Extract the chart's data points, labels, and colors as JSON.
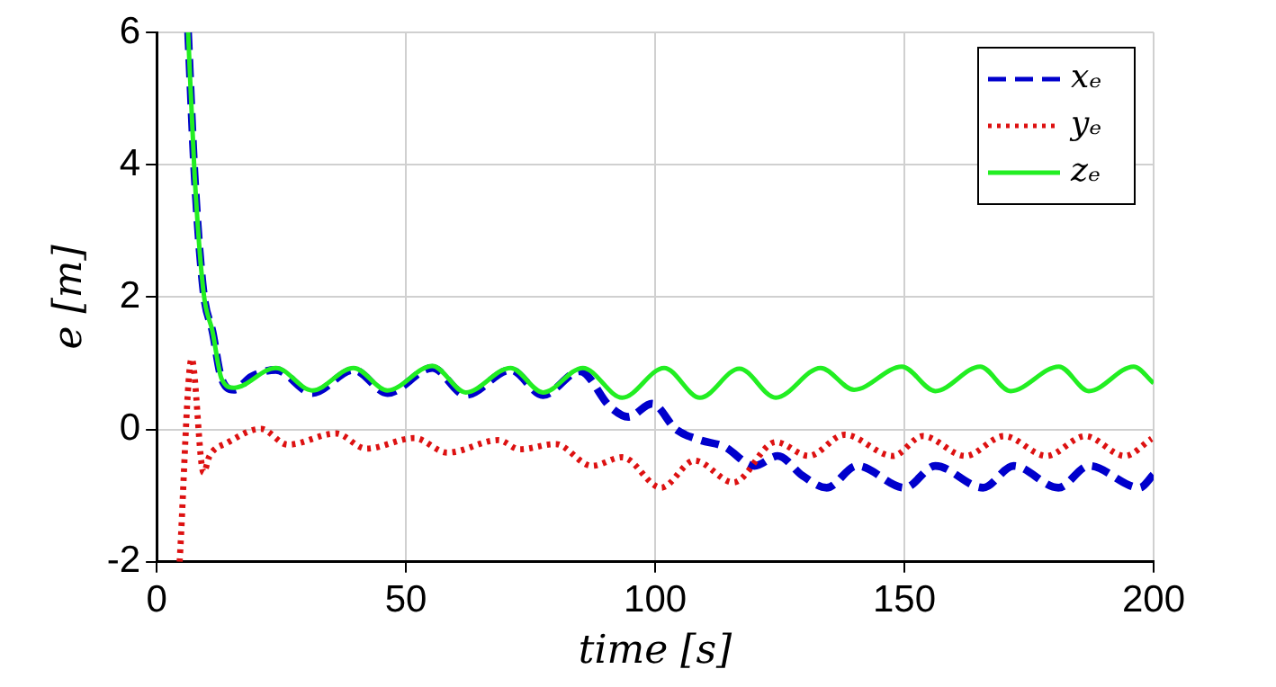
{
  "chart_data": {
    "type": "line",
    "xlabel": "time [s]",
    "ylabel": "e [m]",
    "xlim": [
      0,
      200
    ],
    "xticks": [
      0,
      50,
      100,
      150,
      200
    ],
    "ylim": [
      -2,
      6
    ],
    "yticks": [
      -2,
      0,
      2,
      4,
      6
    ],
    "grid": true,
    "legend": "top right",
    "marker": "none",
    "series": [
      {
        "name": "xₑ",
        "color": "#0000cc",
        "line_style": "dashed",
        "x": [
          6.3,
          7.6,
          9.4,
          11.2,
          13,
          15.5,
          19,
          23.9,
          31.2,
          39.5,
          46.3,
          55.3,
          62,
          71,
          77.5,
          84.9,
          91,
          94.6,
          99.4,
          104.2,
          109,
          113.9,
          119.9,
          124.6,
          129.6,
          134.4,
          140.5,
          150.1,
          156.2,
          165.8,
          171.9,
          180.9,
          187,
          197.2,
          200
        ],
        "values": [
          6,
          3.85,
          2.07,
          1.48,
          0.77,
          0.6,
          0.8,
          0.9,
          0.55,
          0.9,
          0.55,
          0.93,
          0.52,
          0.9,
          0.52,
          0.88,
          0.34,
          0.19,
          0.39,
          0,
          -0.16,
          -0.26,
          -0.55,
          -0.4,
          -0.7,
          -0.88,
          -0.55,
          -0.88,
          -0.55,
          -0.88,
          -0.55,
          -0.88,
          -0.55,
          -0.88,
          -0.68
        ]
      },
      {
        "name": "yₑ",
        "color": "#dd1111",
        "line_style": "dotted",
        "x": [
          4.6,
          7,
          9.4,
          10.6,
          14.2,
          20.9,
          26.3,
          36,
          42,
          51.7,
          58.3,
          68.6,
          72.8,
          80,
          87.3,
          93.4,
          101.2,
          107.9,
          115.7,
          124.2,
          130.8,
          138,
          147.7,
          153.7,
          162.2,
          170,
          178.5,
          186.3,
          194.2,
          199.6
        ],
        "values": [
          -2,
          1.07,
          -0.65,
          -0.4,
          -0.2,
          0.01,
          -0.23,
          -0.06,
          -0.29,
          -0.13,
          -0.35,
          -0.16,
          -0.3,
          -0.22,
          -0.55,
          -0.42,
          -0.88,
          -0.47,
          -0.8,
          -0.19,
          -0.4,
          -0.08,
          -0.4,
          -0.1,
          -0.4,
          -0.1,
          -0.4,
          -0.1,
          -0.4,
          -0.14
        ]
      },
      {
        "name": "zₑ",
        "color": "#22ee22",
        "line_style": "solid",
        "x": [
          6.3,
          7.6,
          9.4,
          11.2,
          13,
          15.5,
          23.9,
          31.2,
          39.5,
          46.3,
          55.3,
          62,
          71,
          77.5,
          85.5,
          93.4,
          101.8,
          109,
          116.9,
          124.2,
          133.2,
          139.9,
          149.5,
          156.2,
          165.2,
          171.3,
          181,
          187,
          196,
          200
        ],
        "values": [
          6,
          3.85,
          2.07,
          1.48,
          0.77,
          0.63,
          0.93,
          0.59,
          0.93,
          0.59,
          0.96,
          0.56,
          0.93,
          0.56,
          0.93,
          0.48,
          0.93,
          0.48,
          0.92,
          0.48,
          0.93,
          0.6,
          0.95,
          0.58,
          0.95,
          0.58,
          0.95,
          0.58,
          0.95,
          0.7
        ]
      }
    ]
  }
}
